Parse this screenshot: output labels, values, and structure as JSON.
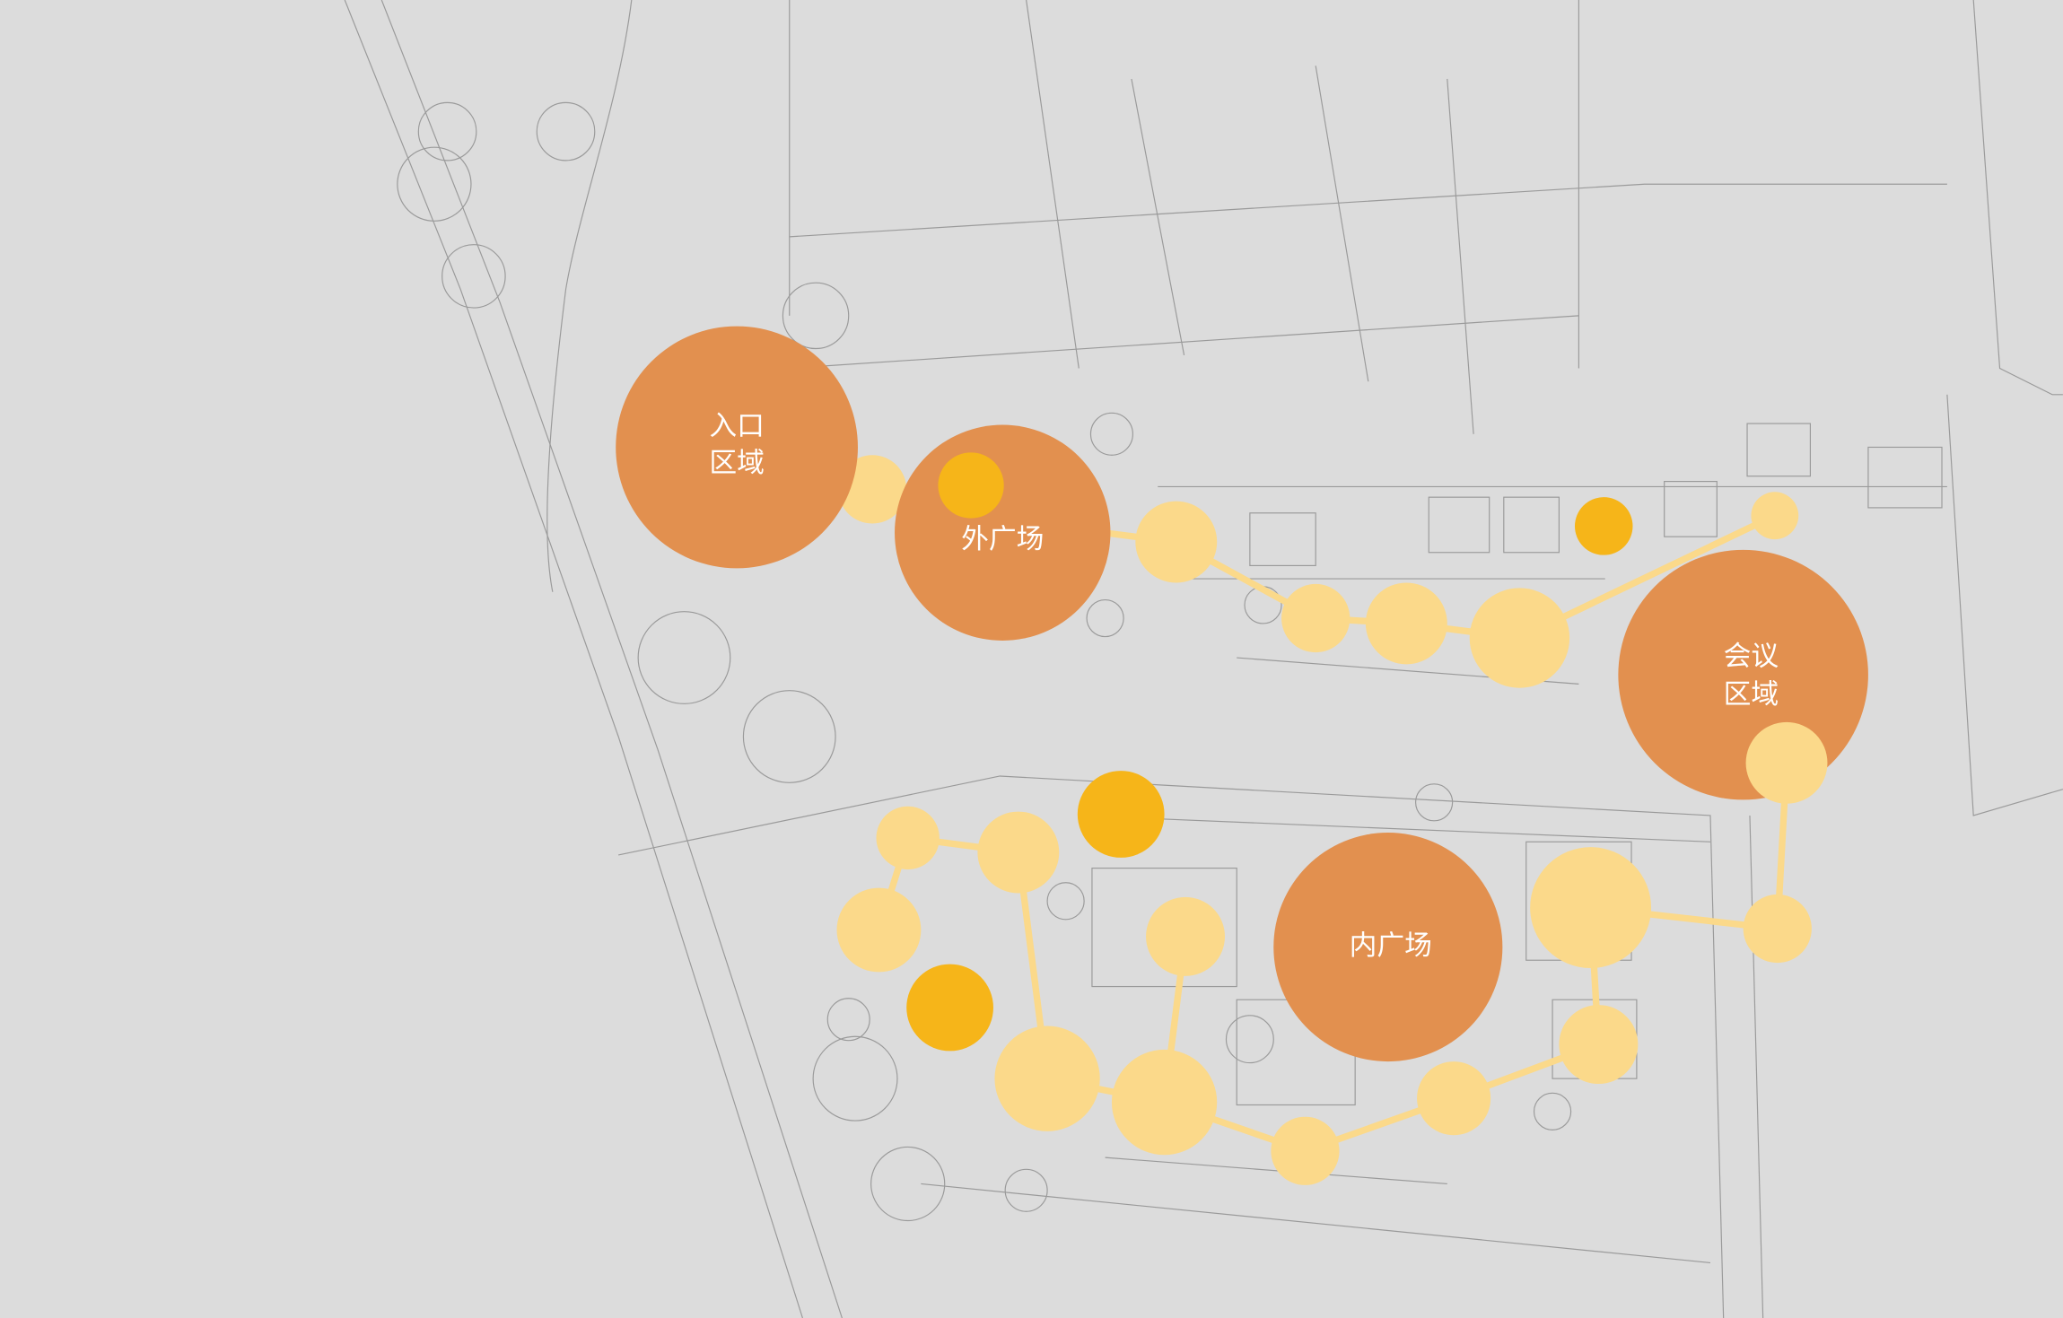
{
  "zones": [
    {
      "lines": [
        "入口",
        "区域"
      ]
    },
    {
      "lines": [
        "外广场"
      ]
    },
    {
      "lines": [
        "会议",
        "区域"
      ]
    },
    {
      "lines": [
        "内广场"
      ]
    }
  ]
}
